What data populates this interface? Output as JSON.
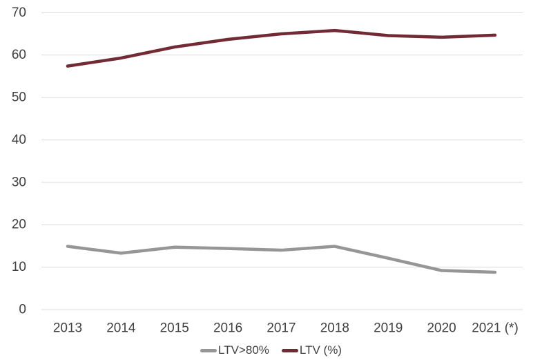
{
  "chart_data": {
    "type": "line",
    "title": "",
    "xlabel": "",
    "ylabel": "",
    "categories": [
      "2013",
      "2014",
      "2015",
      "2016",
      "2017",
      "2018",
      "2019",
      "2020",
      "2021 (*)"
    ],
    "series": [
      {
        "name": "LTV>80%",
        "color": "#969696",
        "values": [
          14.9,
          13.3,
          14.7,
          14.4,
          14.0,
          14.9,
          12.1,
          9.2,
          8.8
        ]
      },
      {
        "name": "LTV (%)",
        "color": "#722B35",
        "values": [
          57.4,
          59.3,
          61.9,
          63.7,
          65.0,
          65.8,
          64.6,
          64.2,
          64.7
        ]
      }
    ],
    "ylim": [
      0,
      70
    ],
    "yticks": [
      0,
      10,
      20,
      30,
      40,
      50,
      60,
      70
    ],
    "grid": true,
    "legend_position": "bottom",
    "colors": {
      "axis_text": "#404040",
      "gridline": "#D9D9D9",
      "background": "#FFFFFF"
    }
  }
}
